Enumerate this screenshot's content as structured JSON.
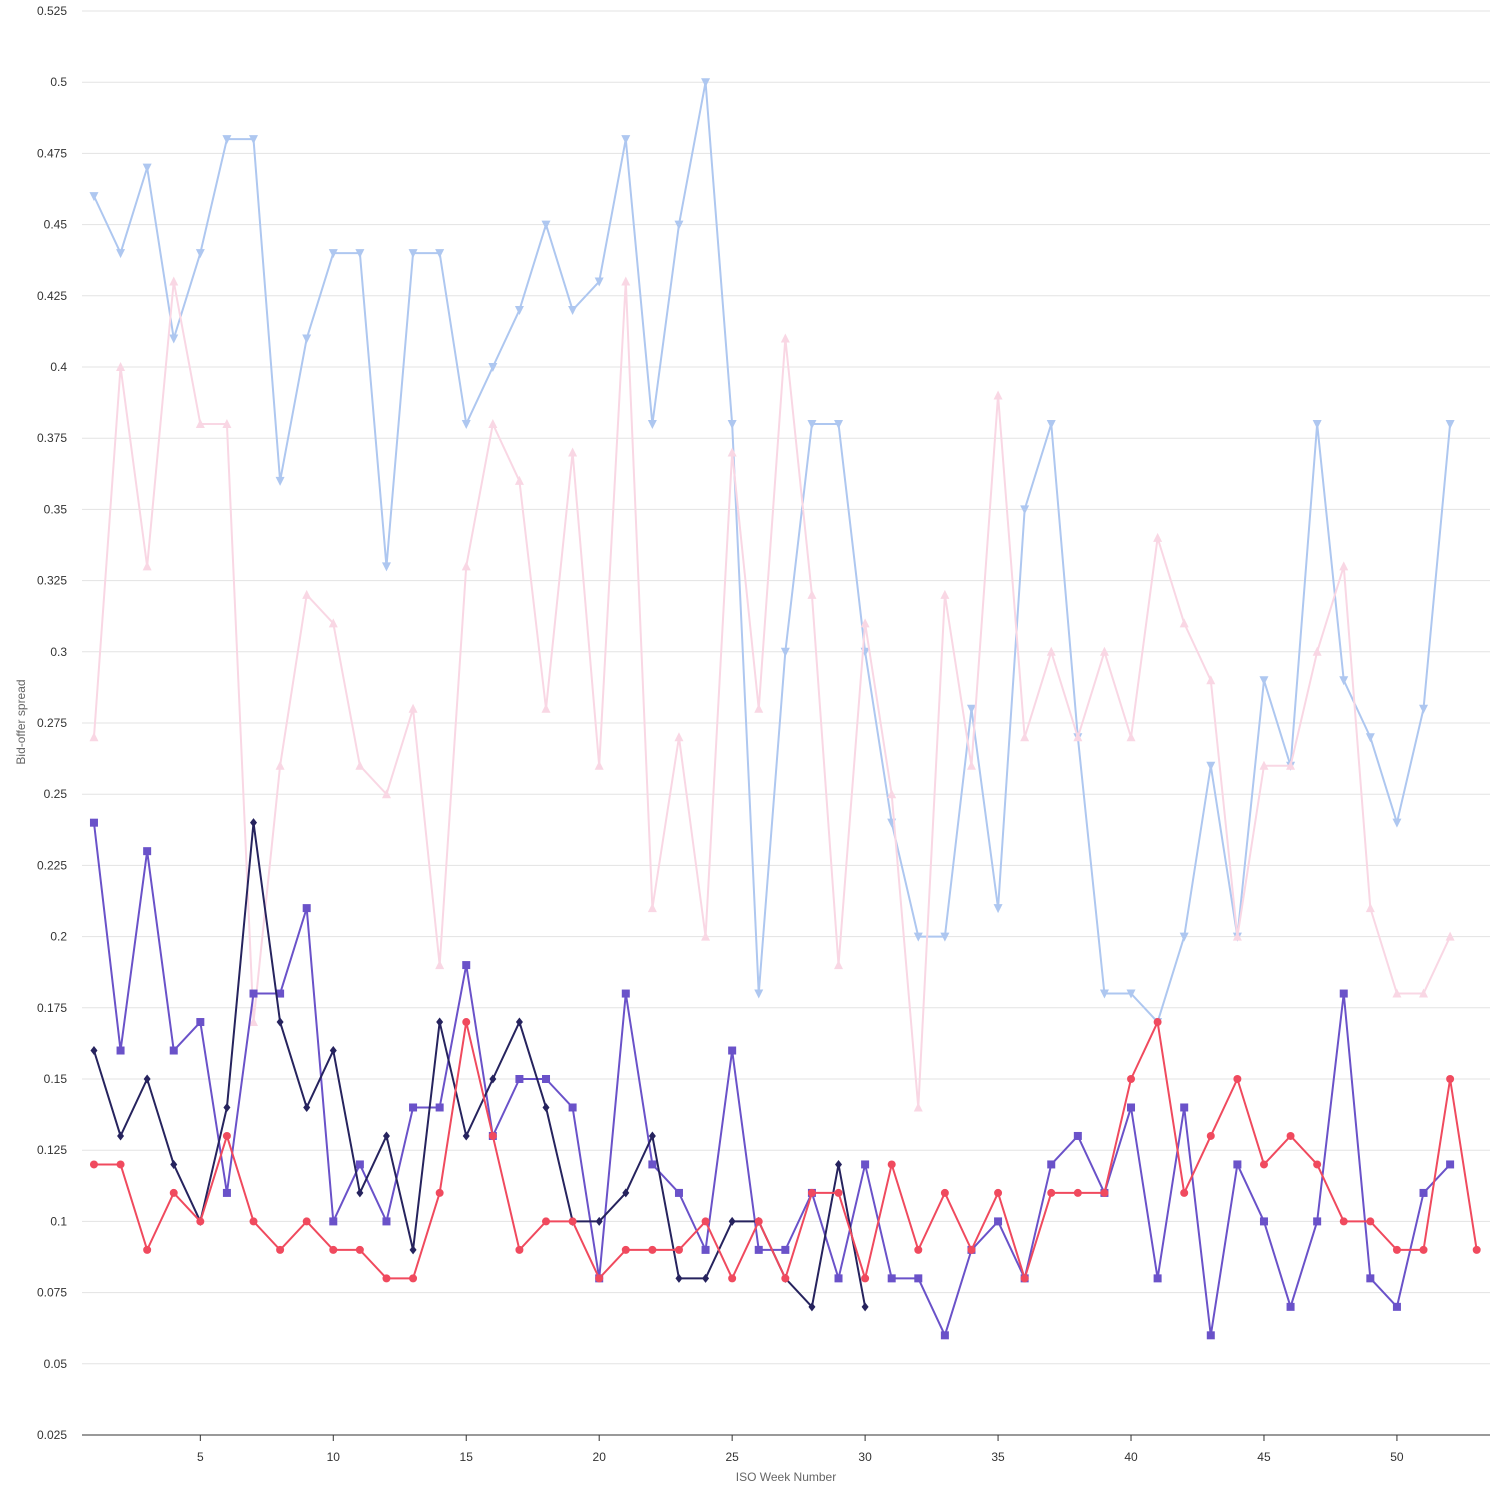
{
  "chart_data": {
    "type": "line",
    "xlabel": "ISO Week Number",
    "ylabel": "Bid-offer spread",
    "xlim": [
      0.55,
      53.5
    ],
    "ylim": [
      0.025,
      0.525
    ],
    "xticks": [
      5,
      10,
      15,
      20,
      25,
      30,
      35,
      40,
      45,
      50
    ],
    "yticks": [
      0.025,
      0.05,
      0.075,
      0.1,
      0.125,
      0.15,
      0.175,
      0.2,
      0.225,
      0.25,
      0.275,
      0.3,
      0.325,
      0.35,
      0.375,
      0.4,
      0.425,
      0.45,
      0.475,
      0.5,
      0.525
    ],
    "grid": "horizontal",
    "series": [
      {
        "color": "#aec7f0",
        "marker": "triangle-down",
        "points": [
          [
            1,
            0.46
          ],
          [
            2,
            0.44
          ],
          [
            3,
            0.47
          ],
          [
            4,
            0.41
          ],
          [
            5,
            0.44
          ],
          [
            6,
            0.48
          ],
          [
            7,
            0.48
          ],
          [
            8,
            0.36
          ],
          [
            9,
            0.41
          ],
          [
            10,
            0.44
          ],
          [
            11,
            0.44
          ],
          [
            12,
            0.33
          ],
          [
            13,
            0.44
          ],
          [
            14,
            0.44
          ],
          [
            15,
            0.38
          ],
          [
            16,
            0.4
          ],
          [
            17,
            0.42
          ],
          [
            18,
            0.45
          ],
          [
            19,
            0.42
          ],
          [
            20,
            0.43
          ],
          [
            21,
            0.48
          ],
          [
            22,
            0.38
          ],
          [
            23,
            0.45
          ],
          [
            24,
            0.5
          ],
          [
            25,
            0.38
          ],
          [
            26,
            0.18
          ],
          [
            27,
            0.3
          ],
          [
            28,
            0.38
          ],
          [
            29,
            0.38
          ],
          [
            30,
            0.3
          ],
          [
            31,
            0.24
          ],
          [
            32,
            0.2
          ],
          [
            33,
            0.2
          ],
          [
            34,
            0.28
          ],
          [
            35,
            0.21
          ],
          [
            36,
            0.35
          ],
          [
            37,
            0.38
          ],
          [
            38,
            0.27
          ],
          [
            39,
            0.18
          ],
          [
            40,
            0.18
          ],
          [
            41,
            0.17
          ],
          [
            42,
            0.2
          ],
          [
            43,
            0.26
          ],
          [
            44,
            0.2
          ],
          [
            45,
            0.29
          ],
          [
            46,
            0.26
          ],
          [
            47,
            0.38
          ],
          [
            48,
            0.29
          ],
          [
            49,
            0.27
          ],
          [
            50,
            0.24
          ],
          [
            51,
            0.28
          ],
          [
            52,
            0.38
          ]
        ]
      },
      {
        "color": "#f9d7e4",
        "marker": "triangle-up",
        "points": [
          [
            1,
            0.27
          ],
          [
            2,
            0.4
          ],
          [
            3,
            0.33
          ],
          [
            4,
            0.43
          ],
          [
            5,
            0.38
          ],
          [
            6,
            0.38
          ],
          [
            7,
            0.17
          ],
          [
            8,
            0.26
          ],
          [
            9,
            0.32
          ],
          [
            10,
            0.31
          ],
          [
            11,
            0.26
          ],
          [
            12,
            0.25
          ],
          [
            13,
            0.28
          ],
          [
            14,
            0.19
          ],
          [
            15,
            0.33
          ],
          [
            16,
            0.38
          ],
          [
            17,
            0.36
          ],
          [
            18,
            0.28
          ],
          [
            19,
            0.37
          ],
          [
            20,
            0.26
          ],
          [
            21,
            0.43
          ],
          [
            22,
            0.21
          ],
          [
            23,
            0.27
          ],
          [
            24,
            0.2
          ],
          [
            25,
            0.37
          ],
          [
            26,
            0.28
          ],
          [
            27,
            0.41
          ],
          [
            28,
            0.32
          ],
          [
            29,
            0.19
          ],
          [
            30,
            0.31
          ],
          [
            31,
            0.25
          ],
          [
            32,
            0.14
          ],
          [
            33,
            0.32
          ],
          [
            34,
            0.26
          ],
          [
            35,
            0.39
          ],
          [
            36,
            0.27
          ],
          [
            37,
            0.3
          ],
          [
            38,
            0.27
          ],
          [
            39,
            0.3
          ],
          [
            40,
            0.27
          ],
          [
            41,
            0.34
          ],
          [
            42,
            0.31
          ],
          [
            43,
            0.29
          ],
          [
            44,
            0.2
          ],
          [
            45,
            0.26
          ],
          [
            46,
            0.26
          ],
          [
            47,
            0.3
          ],
          [
            48,
            0.33
          ],
          [
            49,
            0.21
          ],
          [
            50,
            0.18
          ],
          [
            51,
            0.18
          ],
          [
            52,
            0.2
          ]
        ]
      },
      {
        "color": "#6a52c9",
        "marker": "square",
        "points": [
          [
            1,
            0.24
          ],
          [
            2,
            0.16
          ],
          [
            3,
            0.23
          ],
          [
            4,
            0.16
          ],
          [
            5,
            0.17
          ],
          [
            6,
            0.11
          ],
          [
            7,
            0.18
          ],
          [
            8,
            0.18
          ],
          [
            9,
            0.21
          ],
          [
            10,
            0.1
          ],
          [
            11,
            0.12
          ],
          [
            12,
            0.1
          ],
          [
            13,
            0.14
          ],
          [
            14,
            0.14
          ],
          [
            15,
            0.19
          ],
          [
            16,
            0.13
          ],
          [
            17,
            0.15
          ],
          [
            18,
            0.15
          ],
          [
            19,
            0.14
          ],
          [
            20,
            0.08
          ],
          [
            21,
            0.18
          ],
          [
            22,
            0.12
          ],
          [
            23,
            0.11
          ],
          [
            24,
            0.09
          ],
          [
            25,
            0.16
          ],
          [
            26,
            0.09
          ],
          [
            27,
            0.09
          ],
          [
            28,
            0.11
          ],
          [
            29,
            0.08
          ],
          [
            30,
            0.12
          ],
          [
            31,
            0.08
          ],
          [
            32,
            0.08
          ],
          [
            33,
            0.06
          ],
          [
            34,
            0.09
          ],
          [
            35,
            0.1
          ],
          [
            36,
            0.08
          ],
          [
            37,
            0.12
          ],
          [
            38,
            0.13
          ],
          [
            39,
            0.11
          ],
          [
            40,
            0.14
          ],
          [
            41,
            0.08
          ],
          [
            42,
            0.14
          ],
          [
            43,
            0.06
          ],
          [
            44,
            0.12
          ],
          [
            45,
            0.1
          ],
          [
            46,
            0.07
          ],
          [
            47,
            0.1
          ],
          [
            48,
            0.18
          ],
          [
            49,
            0.08
          ],
          [
            50,
            0.07
          ],
          [
            51,
            0.11
          ],
          [
            52,
            0.12
          ]
        ]
      },
      {
        "color": "#26235e",
        "marker": "diamond",
        "points": [
          [
            1,
            0.16
          ],
          [
            2,
            0.13
          ],
          [
            3,
            0.15
          ],
          [
            4,
            0.12
          ],
          [
            5,
            0.1
          ],
          [
            6,
            0.14
          ],
          [
            7,
            0.24
          ],
          [
            8,
            0.17
          ],
          [
            9,
            0.14
          ],
          [
            10,
            0.16
          ],
          [
            11,
            0.11
          ],
          [
            12,
            0.13
          ],
          [
            13,
            0.09
          ],
          [
            14,
            0.17
          ],
          [
            15,
            0.13
          ],
          [
            16,
            0.15
          ],
          [
            17,
            0.17
          ],
          [
            18,
            0.14
          ],
          [
            19,
            0.1
          ],
          [
            20,
            0.1
          ],
          [
            21,
            0.11
          ],
          [
            22,
            0.13
          ],
          [
            23,
            0.08
          ],
          [
            24,
            0.08
          ],
          [
            25,
            0.1
          ],
          [
            26,
            0.1
          ],
          [
            27,
            0.08
          ],
          [
            28,
            0.07
          ],
          [
            29,
            0.12
          ],
          [
            30,
            0.07
          ]
        ]
      },
      {
        "color": "#f04a5e",
        "marker": "circle",
        "points": [
          [
            1,
            0.12
          ],
          [
            2,
            0.12
          ],
          [
            3,
            0.09
          ],
          [
            4,
            0.11
          ],
          [
            5,
            0.1
          ],
          [
            6,
            0.13
          ],
          [
            7,
            0.1
          ],
          [
            8,
            0.09
          ],
          [
            9,
            0.1
          ],
          [
            10,
            0.09
          ],
          [
            11,
            0.09
          ],
          [
            12,
            0.08
          ],
          [
            13,
            0.08
          ],
          [
            14,
            0.11
          ],
          [
            15,
            0.17
          ],
          [
            16,
            0.13
          ],
          [
            17,
            0.09
          ],
          [
            18,
            0.1
          ],
          [
            19,
            0.1
          ],
          [
            20,
            0.08
          ],
          [
            21,
            0.09
          ],
          [
            22,
            0.09
          ],
          [
            23,
            0.09
          ],
          [
            24,
            0.1
          ],
          [
            25,
            0.08
          ],
          [
            26,
            0.1
          ],
          [
            27,
            0.08
          ],
          [
            28,
            0.11
          ],
          [
            29,
            0.11
          ],
          [
            30,
            0.08
          ],
          [
            31,
            0.12
          ],
          [
            32,
            0.09
          ],
          [
            33,
            0.11
          ],
          [
            34,
            0.09
          ],
          [
            35,
            0.11
          ],
          [
            36,
            0.08
          ],
          [
            37,
            0.11
          ],
          [
            38,
            0.11
          ],
          [
            39,
            0.11
          ],
          [
            40,
            0.15
          ],
          [
            41,
            0.17
          ],
          [
            42,
            0.11
          ],
          [
            43,
            0.13
          ],
          [
            44,
            0.15
          ],
          [
            45,
            0.12
          ],
          [
            46,
            0.13
          ],
          [
            47,
            0.12
          ],
          [
            48,
            0.1
          ],
          [
            49,
            0.1
          ],
          [
            50,
            0.09
          ],
          [
            51,
            0.09
          ],
          [
            52,
            0.15
          ],
          [
            53,
            0.09
          ]
        ]
      }
    ]
  }
}
